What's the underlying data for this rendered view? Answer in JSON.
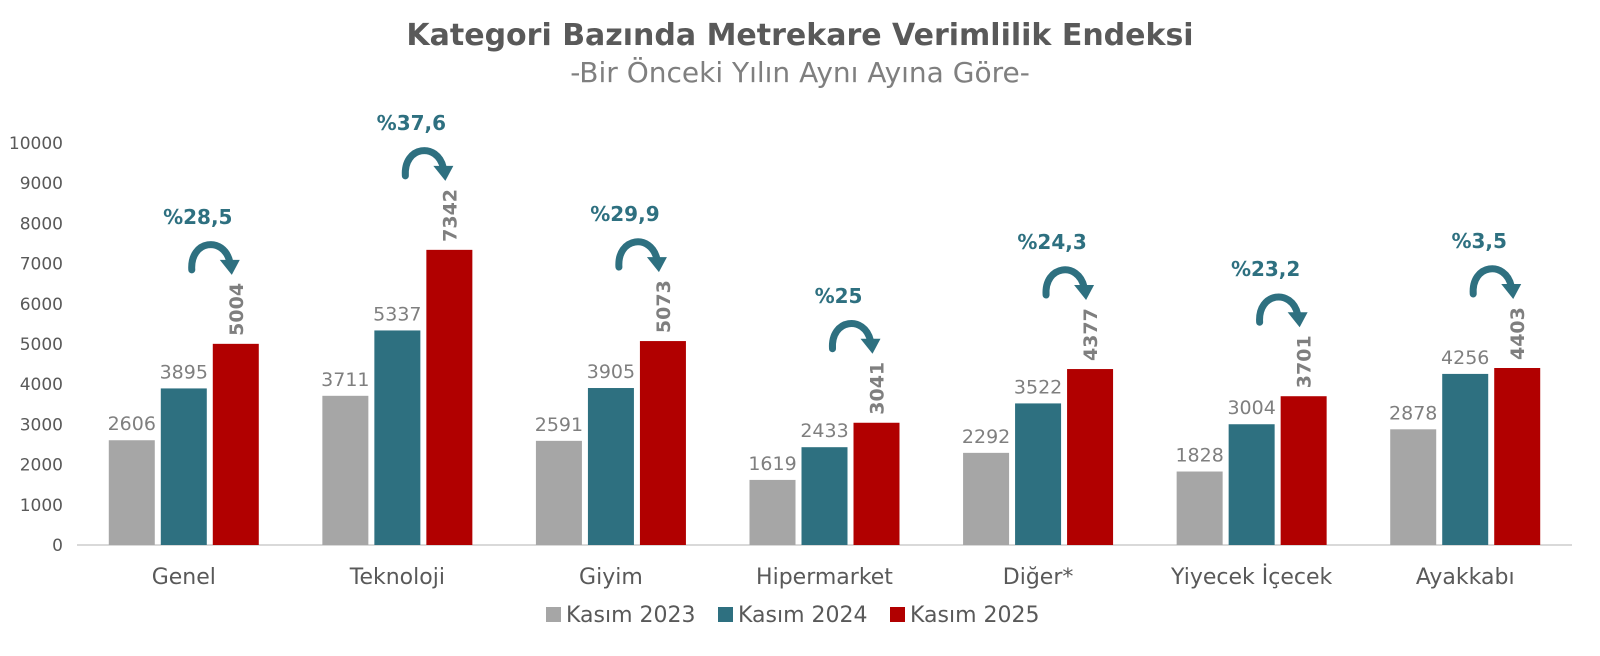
{
  "chart_data": {
    "type": "bar",
    "title": "Kategori Bazında Metrekare Verimlilik Endeksi",
    "subtitle": "-Bir Önceki Yılın Aynı Ayına Göre-",
    "categories": [
      "Genel",
      "Teknoloji",
      "Giyim",
      "Hipermarket",
      "Diğer*",
      "Yiyecek İçecek",
      "Ayakkabı"
    ],
    "series": [
      {
        "name": "Kasım 2023",
        "color": "#a6a6a6",
        "values": [
          2606,
          3711,
          2591,
          1619,
          2292,
          1828,
          2878
        ]
      },
      {
        "name": "Kasım 2024",
        "color": "#2e7080",
        "values": [
          3895,
          5337,
          3905,
          2433,
          3522,
          3004,
          4256
        ]
      },
      {
        "name": "Kasım 2025",
        "color": "#b10000",
        "values": [
          5004,
          7342,
          5073,
          3041,
          4377,
          3701,
          4403
        ]
      }
    ],
    "change_labels": [
      "%28,5",
      "%37,6",
      "%29,9",
      "%25",
      "%24,3",
      "%23,2",
      "%3,5"
    ],
    "ylim": [
      0,
      10000
    ],
    "yticks": [
      0,
      1000,
      2000,
      3000,
      4000,
      5000,
      6000,
      7000,
      8000,
      9000,
      10000
    ],
    "grid": false,
    "legend_position": "bottom",
    "annotation_color": "#2e7080"
  }
}
